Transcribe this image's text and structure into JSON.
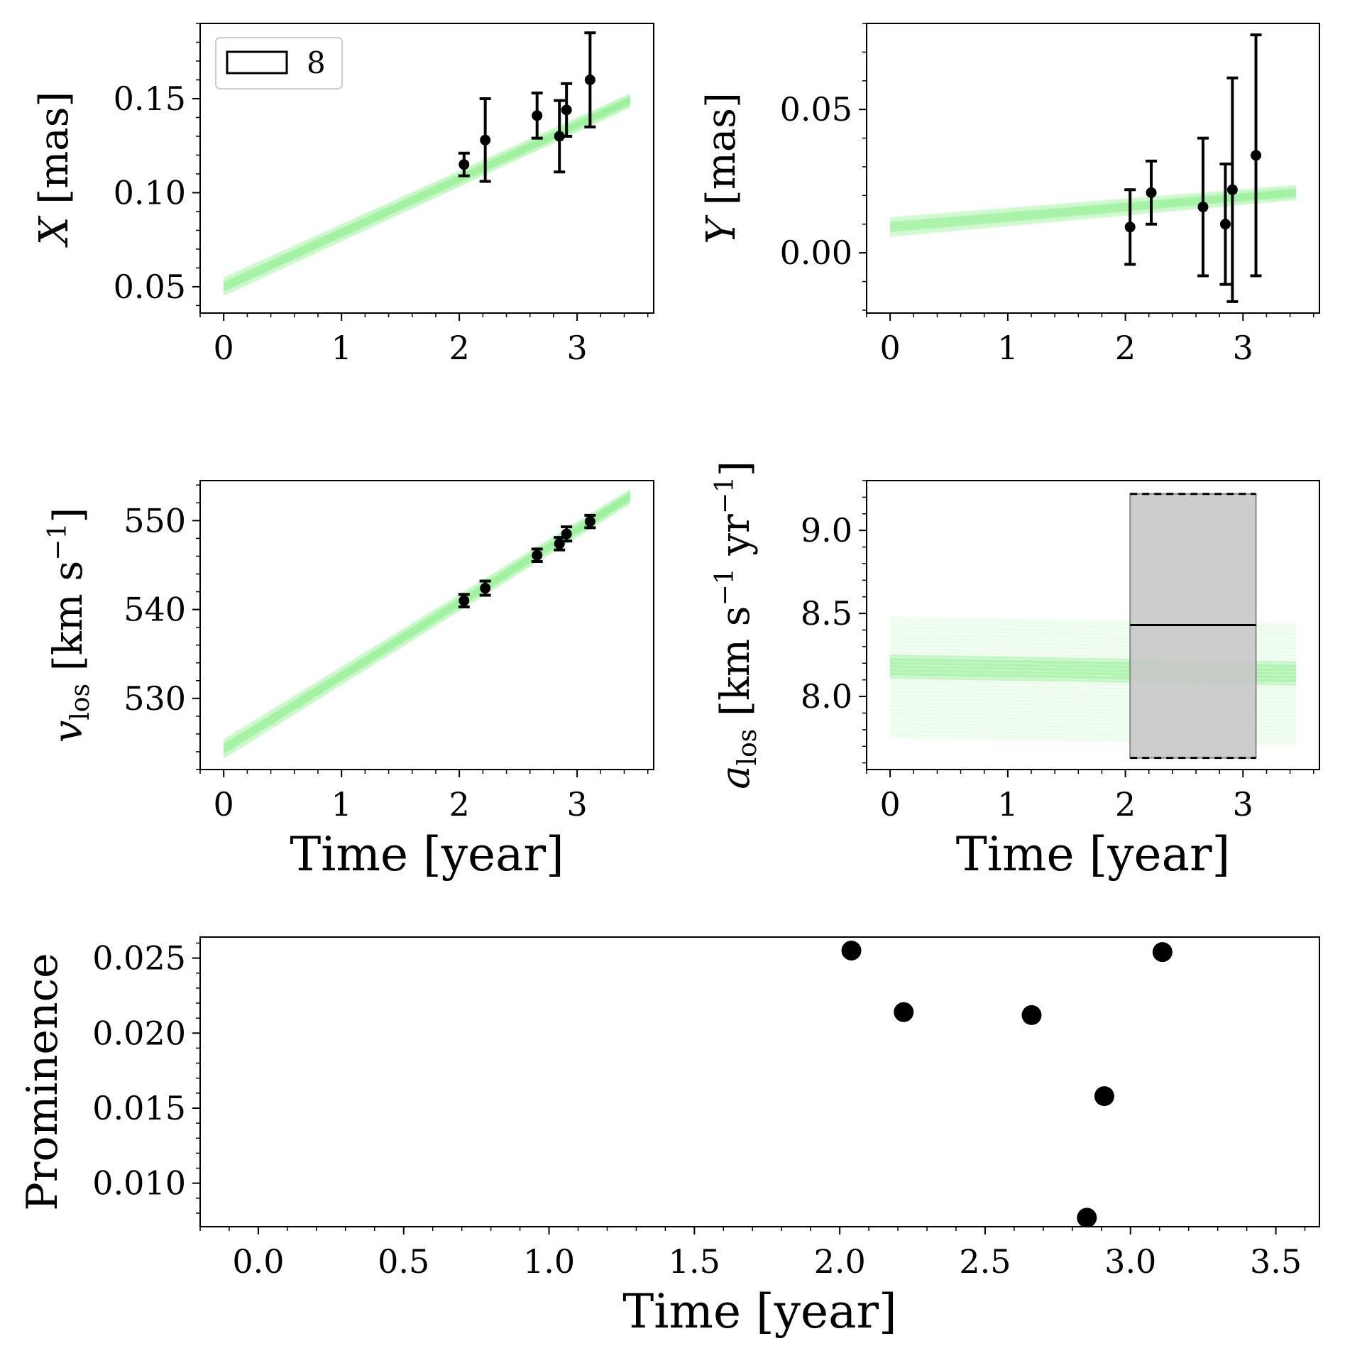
{
  "chart_data": [
    {
      "id": "x",
      "type": "scatter",
      "ylabel": "X [mas]",
      "ylabel_var": "X",
      "ylabel_rest": " [mas]",
      "xlabel": "",
      "xlim": [
        -0.2,
        3.65
      ],
      "ylim": [
        0.036,
        0.19
      ],
      "xticks": [
        0,
        1,
        2,
        3
      ],
      "xtick_labels": [
        "0",
        "1",
        "2",
        "3"
      ],
      "yticks": [
        0.05,
        0.1,
        0.15
      ],
      "ytick_labels": [
        "0.05",
        "0.10",
        "0.15"
      ],
      "legend": {
        "label": "8",
        "position": "upper left"
      },
      "model_band": {
        "color": "#90EE90",
        "x": [
          0,
          3.45
        ],
        "y_center": [
          0.05,
          0.149
        ],
        "half_width": 0.004
      },
      "points": {
        "x": [
          2.04,
          2.22,
          2.66,
          2.85,
          2.91,
          3.11
        ],
        "y": [
          0.115,
          0.128,
          0.141,
          0.13,
          0.144,
          0.16
        ],
        "err": [
          0.006,
          0.022,
          0.012,
          0.019,
          0.014,
          0.025
        ]
      }
    },
    {
      "id": "y",
      "type": "scatter",
      "ylabel": "Y [mas]",
      "ylabel_var": "Y",
      "ylabel_rest": " [mas]",
      "xlabel": "",
      "xlim": [
        -0.2,
        3.65
      ],
      "ylim": [
        -0.021,
        0.08
      ],
      "xticks": [
        0,
        1,
        2,
        3
      ],
      "xtick_labels": [
        "0",
        "1",
        "2",
        "3"
      ],
      "yticks": [
        0.0,
        0.05
      ],
      "ytick_labels": [
        "0.00",
        "0.05"
      ],
      "model_band": {
        "color": "#90EE90",
        "x": [
          0,
          3.45
        ],
        "y_center": [
          0.009,
          0.021
        ],
        "half_width": 0.0028
      },
      "points": {
        "x": [
          2.04,
          2.22,
          2.66,
          2.85,
          2.91,
          3.11
        ],
        "y": [
          0.009,
          0.021,
          0.016,
          0.01,
          0.022,
          0.034
        ],
        "err": [
          0.013,
          0.011,
          0.024,
          0.021,
          0.039,
          0.042
        ]
      }
    },
    {
      "id": "vlos",
      "type": "scatter",
      "ylabel": "v_los [km s^-1]",
      "ylabel_var": "v",
      "ylabel_sub": "los",
      "ylabel_rest": " [km s",
      "ylabel_sup": "−1",
      "ylabel_end": "]",
      "xlabel": "Time [year]",
      "xlim": [
        -0.2,
        3.65
      ],
      "ylim": [
        522.0,
        554.5
      ],
      "xticks": [
        0,
        1,
        2,
        3
      ],
      "xtick_labels": [
        "0",
        "1",
        "2",
        "3"
      ],
      "yticks": [
        530,
        540,
        550
      ],
      "ytick_labels": [
        "530",
        "540",
        "550"
      ],
      "model_band": {
        "color": "#90EE90",
        "x": [
          0,
          3.45
        ],
        "y_center": [
          524.3,
          552.7
        ],
        "half_width": 0.9
      },
      "points": {
        "x": [
          2.04,
          2.22,
          2.66,
          2.85,
          2.91,
          3.11
        ],
        "y": [
          541.0,
          542.4,
          546.1,
          547.4,
          548.5,
          549.9
        ],
        "err": [
          0.7,
          0.8,
          0.7,
          0.7,
          0.8,
          0.7
        ]
      }
    },
    {
      "id": "alos",
      "type": "scatter",
      "ylabel": "a_los [km s^-1 yr^-1]",
      "ylabel_var": "a",
      "ylabel_sub": "los",
      "ylabel_rest": " [km s",
      "ylabel_sup": "−1",
      "ylabel_mid": " yr",
      "ylabel_sup2": "−1",
      "ylabel_end": "]",
      "xlabel": "Time [year]",
      "xlim": [
        -0.2,
        3.65
      ],
      "ylim": [
        7.56,
        9.3
      ],
      "xticks": [
        0,
        1,
        2,
        3
      ],
      "xtick_labels": [
        "0",
        "1",
        "2",
        "3"
      ],
      "yticks": [
        8.0,
        8.5,
        9.0
      ],
      "ytick_labels": [
        "8.0",
        "8.5",
        "9.0"
      ],
      "model_band": {
        "color": "#90EE90",
        "x": [
          0,
          3.45
        ],
        "y_range": [
          7.76,
          8.47
        ],
        "y_center": 8.18
      },
      "constraint_box": {
        "x": [
          2.04,
          3.11
        ],
        "y": [
          7.63,
          9.22
        ],
        "mean": 8.43,
        "fill": "#c8c8c8"
      }
    },
    {
      "id": "prominence",
      "type": "scatter",
      "ylabel": "Prominence",
      "xlabel": "Time [year]",
      "xlim": [
        -0.2,
        3.65
      ],
      "ylim": [
        0.0071,
        0.0264
      ],
      "xticks": [
        0.0,
        0.5,
        1.0,
        1.5,
        2.0,
        2.5,
        3.0,
        3.5
      ],
      "xtick_labels": [
        "0.0",
        "0.5",
        "1.0",
        "1.5",
        "2.0",
        "2.5",
        "3.0",
        "3.5"
      ],
      "yticks": [
        0.01,
        0.015,
        0.02,
        0.025
      ],
      "ytick_labels": [
        "0.010",
        "0.015",
        "0.020",
        "0.025"
      ],
      "points": {
        "x": [
          2.04,
          2.22,
          2.66,
          2.85,
          2.91,
          3.11
        ],
        "y": [
          0.0255,
          0.0214,
          0.0212,
          0.0077,
          0.0158,
          0.0254
        ]
      }
    }
  ]
}
